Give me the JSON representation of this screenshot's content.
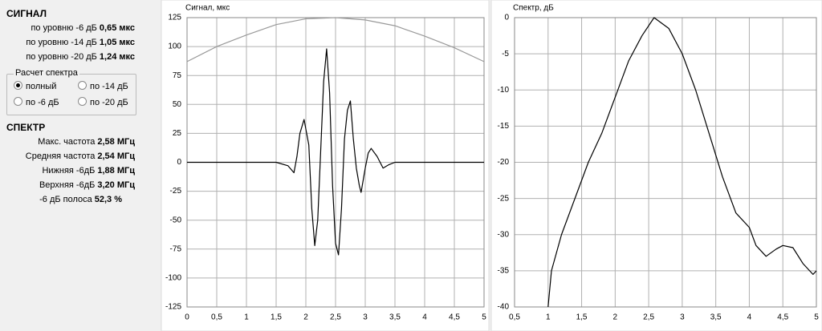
{
  "panel": {
    "signal_title": "СИГНАЛ",
    "signal_rows": [
      {
        "label": "по уровню -6 дБ",
        "value": "0,65 мкс"
      },
      {
        "label": "по уровню -14 дБ",
        "value": "1,05 мкс"
      },
      {
        "label": "по уровню -20 дБ",
        "value": "1,24 мкс"
      }
    ],
    "spectrum_calc": {
      "title": "Расчет спектра",
      "options": [
        "полный",
        "по -14 дБ",
        "по -6 дБ",
        "по -20 дБ"
      ],
      "selected": 0
    },
    "spectrum_title": "СПЕКТР",
    "spectrum_rows": [
      {
        "label": "Макс. частота",
        "value": "2,58 МГц"
      },
      {
        "label": "Средняя частота",
        "value": "2,54 МГц"
      },
      {
        "label": "Нижняя -6дБ",
        "value": "1,88 МГц"
      },
      {
        "label": "Верхняя -6дБ",
        "value": "3,20 МГц"
      },
      {
        "label": "-6 дБ полоса",
        "value": "52,3 %"
      }
    ]
  },
  "chart_data": [
    {
      "type": "line",
      "title": "Сигнал, мкс",
      "grid": true,
      "xlim": [
        0,
        5
      ],
      "ylim": [
        -125,
        125
      ],
      "xticks": [
        0,
        {
          "value": 0.5,
          "label": "0,5"
        },
        1,
        {
          "value": 1.5,
          "label": "1,5"
        },
        2,
        {
          "value": 2.5,
          "label": "2,5"
        },
        3,
        {
          "value": 3.5,
          "label": "3,5"
        },
        4,
        {
          "value": 4.5,
          "label": "4,5"
        },
        5
      ],
      "yticks": [
        -125,
        -100,
        -75,
        -50,
        -25,
        0,
        25,
        50,
        75,
        100,
        125
      ],
      "series": [
        {
          "color": "#999999",
          "x": [
            0,
            0.5,
            1,
            1.5,
            2,
            2.5,
            3,
            3.5,
            4,
            4.5,
            5
          ],
          "values": [
            87,
            100,
            110,
            119,
            124,
            125,
            123,
            118,
            109,
            99,
            87
          ]
        },
        {
          "color": "#000000",
          "x": [
            0,
            1.5,
            1.7,
            1.8,
            1.85,
            1.9,
            1.97,
            2.05,
            2.1,
            2.15,
            2.2,
            2.25,
            2.3,
            2.35,
            2.4,
            2.45,
            2.5,
            2.55,
            2.6,
            2.65,
            2.7,
            2.75,
            2.8,
            2.85,
            2.9,
            2.93,
            3.0,
            3.05,
            3.1,
            3.2,
            3.3,
            3.4,
            3.5,
            5
          ],
          "values": [
            0,
            0,
            -3,
            -9,
            5,
            25,
            37,
            15,
            -40,
            -72,
            -50,
            10,
            70,
            98,
            60,
            -20,
            -70,
            -80,
            -40,
            20,
            45,
            53,
            20,
            -5,
            -20,
            -26,
            -5,
            8,
            12,
            5,
            -5,
            -2,
            0,
            0
          ]
        }
      ]
    },
    {
      "type": "line",
      "title": "Спектр, дБ",
      "grid": true,
      "xlim": [
        0.5,
        5
      ],
      "ylim": [
        -40,
        0
      ],
      "xticks": [
        {
          "value": 0.5,
          "label": "0,5"
        },
        1,
        {
          "value": 1.5,
          "label": "1,5"
        },
        2,
        {
          "value": 2.5,
          "label": "2,5"
        },
        3,
        {
          "value": 3.5,
          "label": "3,5"
        },
        4,
        {
          "value": 4.5,
          "label": "4,5"
        },
        5
      ],
      "yticks": [
        -40,
        -35,
        -30,
        -25,
        -20,
        -15,
        -10,
        -5,
        0
      ],
      "series": [
        {
          "color": "#000000",
          "x": [
            1.0,
            1.05,
            1.2,
            1.4,
            1.6,
            1.8,
            2.0,
            2.2,
            2.4,
            2.58,
            2.8,
            3.0,
            3.2,
            3.4,
            3.6,
            3.8,
            4.0,
            4.1,
            4.25,
            4.4,
            4.5,
            4.65,
            4.8,
            4.95,
            5.0
          ],
          "values": [
            -40,
            -35,
            -30,
            -25,
            -20,
            -16,
            -11,
            -6,
            -2.5,
            0,
            -1.5,
            -5,
            -10,
            -16,
            -22,
            -27,
            -29,
            -31.5,
            -33,
            -32,
            -31.5,
            -31.8,
            -34,
            -35.5,
            -35
          ]
        }
      ]
    }
  ]
}
